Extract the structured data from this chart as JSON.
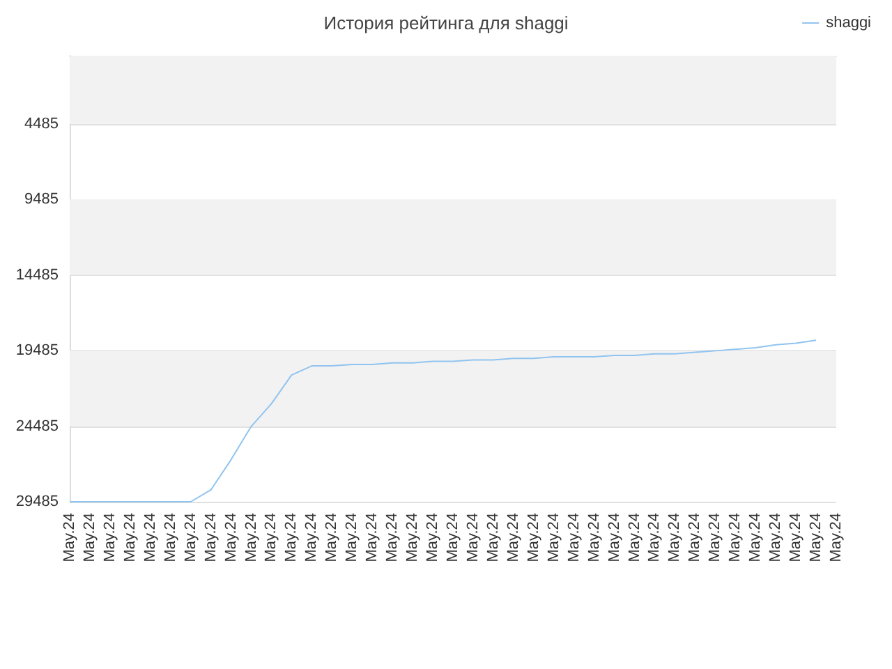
{
  "chart_data": {
    "type": "line",
    "title": "История рейтинга для shaggi",
    "categories": [
      "May.24",
      "May.24",
      "May.24",
      "May.24",
      "May.24",
      "May.24",
      "May.24",
      "May.24",
      "May.24",
      "May.24",
      "May.24",
      "May.24",
      "May.24",
      "May.24",
      "May.24",
      "May.24",
      "May.24",
      "May.24",
      "May.24",
      "May.24",
      "May.24",
      "May.24",
      "May.24",
      "May.24",
      "May.24",
      "May.24",
      "May.24",
      "May.24",
      "May.24",
      "May.24",
      "May.24",
      "May.24",
      "May.24",
      "May.24",
      "May.24",
      "May.24",
      "May.24",
      "May.24",
      "May.24"
    ],
    "series": [
      {
        "name": "shaggi",
        "color": "#90c4f0",
        "values": [
          29485,
          29485,
          29485,
          29485,
          29485,
          29485,
          29485,
          28700,
          26700,
          24500,
          23000,
          21100,
          20500,
          20500,
          20400,
          20400,
          20300,
          20300,
          20200,
          20200,
          20100,
          20100,
          20000,
          20000,
          19900,
          19900,
          19900,
          19800,
          19800,
          19700,
          19700,
          19600,
          19500,
          19400,
          19300,
          19100,
          19000,
          18800,
          null
        ]
      }
    ],
    "ylim": [
      29485,
      -15
    ],
    "yticks": [
      4485,
      9485,
      14485,
      19485,
      24485,
      29485
    ],
    "grid": "y",
    "legend": "top right",
    "marker": "none",
    "line_style": "solid"
  }
}
